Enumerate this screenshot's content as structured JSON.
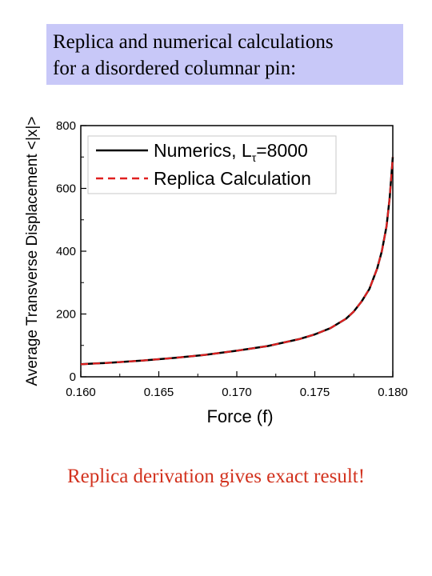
{
  "slide": {
    "title_line1": "Replica and numerical calculations",
    "title_line2": "for a disordered columnar pin:",
    "footer": "Replica derivation gives exact result!",
    "title_bg": "#c8c8f8",
    "footer_color": "#d2321e"
  },
  "chart_data": {
    "type": "line",
    "xlabel": "Force (f)",
    "ylabel": "Average Transverse Displacement <|x|>",
    "xlim": [
      0.16,
      0.18
    ],
    "ylim": [
      0,
      800
    ],
    "xticks": [
      "0.160",
      "0.165",
      "0.170",
      "0.175",
      "0.180"
    ],
    "yticks": [
      "0",
      "200",
      "400",
      "600",
      "800"
    ],
    "legend_position": "top-left",
    "series": [
      {
        "name": "Numerics, L",
        "name_subscript": "τ",
        "name_suffix": "=8000",
        "style": "solid",
        "color": "#000000",
        "x": [
          0.16,
          0.162,
          0.164,
          0.166,
          0.168,
          0.17,
          0.172,
          0.174,
          0.175,
          0.176,
          0.177,
          0.1775,
          0.178,
          0.1785,
          0.179,
          0.1793,
          0.1796,
          0.1798,
          0.18
        ],
        "y": [
          40,
          45,
          52,
          60,
          70,
          83,
          98,
          120,
          135,
          155,
          185,
          208,
          240,
          280,
          345,
          400,
          480,
          570,
          700
        ]
      },
      {
        "name": "Replica Calculation",
        "style": "dashed",
        "color": "#e02020",
        "x": [
          0.16,
          0.162,
          0.164,
          0.166,
          0.168,
          0.17,
          0.172,
          0.174,
          0.175,
          0.176,
          0.177,
          0.1775,
          0.178,
          0.1785,
          0.179,
          0.1793,
          0.1796,
          0.1798,
          0.18
        ],
        "y": [
          40,
          45,
          52,
          60,
          70,
          83,
          98,
          120,
          135,
          155,
          185,
          208,
          240,
          280,
          345,
          400,
          480,
          570,
          700
        ]
      }
    ]
  }
}
